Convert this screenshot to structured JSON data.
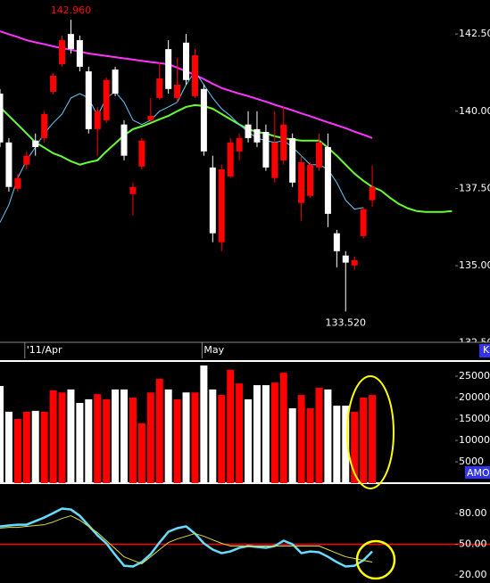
{
  "chart_data": [
    {
      "type": "candlestick",
      "categories": [
        null,
        null,
        null,
        "'11/Apr",
        null,
        null,
        null,
        null,
        null,
        null,
        null,
        null,
        null,
        null,
        null,
        null,
        null,
        null,
        null,
        null,
        null,
        null,
        null,
        "May",
        null,
        null,
        null,
        null,
        null,
        null,
        null,
        null,
        null,
        null,
        null,
        null,
        null,
        null,
        null,
        null,
        null,
        null,
        null,
        null,
        null,
        null,
        null,
        null,
        null,
        null,
        null,
        null
      ],
      "open": [
        138.99,
        137.55,
        137.84,
        138.56,
        138.84,
        139.91,
        141.15,
        142.3,
        142.01,
        141.44,
        139.42,
        140.0,
        141.01,
        140.57,
        138.56,
        137.55,
        139.05,
        139.85,
        141.06,
        140.72,
        140.86,
        141.01,
        141.81,
        138.7,
        136.05,
        138.12,
        138.99,
        139.13,
        139.13,
        138.99,
        138.18,
        138.99,
        139.57,
        137.69,
        138.35,
        138.27,
        138.99,
        136.68,
        135.47,
        135.1,
        135.18,
        136.83,
        137.55,
        null,
        null,
        null,
        null,
        null,
        null,
        null,
        null,
        null
      ],
      "high": [
        140.72,
        139.13,
        137.98,
        138.7,
        139.28,
        140.0,
        141.24,
        142.45,
        142.96,
        142.45,
        141.44,
        140.14,
        141.09,
        141.44,
        139.71,
        137.69,
        139.13,
        140.43,
        141.58,
        142.3,
        141.73,
        142.5,
        142.01,
        140.86,
        138.56,
        138.27,
        139.13,
        139.28,
        140.0,
        140.0,
        139.57,
        140.0,
        140.14,
        139.28,
        138.56,
        138.35,
        139.28,
        139.28,
        136.16,
        135.47,
        135.3,
        136.91,
        138.24,
        null,
        null,
        null,
        null,
        null,
        null,
        null,
        null,
        null
      ],
      "low": [
        138.84,
        137.4,
        137.4,
        138.12,
        138.56,
        138.99,
        140.55,
        141.44,
        141.87,
        141.29,
        139.28,
        138.56,
        139.62,
        140.49,
        138.41,
        136.63,
        138.12,
        139.65,
        140.37,
        140.57,
        140.29,
        140.86,
        140.43,
        138.56,
        135.76,
        135.47,
        137.84,
        138.41,
        138.99,
        138.84,
        138.07,
        137.69,
        138.27,
        137.55,
        136.45,
        137.2,
        138.07,
        136.25,
        134.95,
        133.52,
        134.87,
        135.88,
        136.91,
        null,
        null,
        null,
        null,
        null,
        null,
        null,
        null,
        null
      ],
      "close": [
        140.57,
        138.99,
        137.49,
        138.27,
        139.05,
        139.13,
        140.63,
        141.52,
        142.5,
        142.3,
        141.29,
        139.42,
        139.71,
        141.35,
        139.57,
        137.32,
        138.21,
        139.71,
        140.43,
        142.01,
        140.43,
        142.22,
        140.49,
        140.72,
        138.18,
        135.76,
        137.89,
        138.7,
        139.57,
        139.42,
        139.33,
        137.84,
        138.41,
        139.13,
        137.03,
        137.26,
        138.18,
        138.84,
        136.05,
        135.33,
        135.01,
        135.96,
        137.12,
        null,
        null,
        null,
        null,
        null,
        null,
        null,
        null,
        null
      ],
      "up_color": "#ffffff",
      "down_color": "#ff0000",
      "series": [
        {
          "color": "#ff33ff",
          "line_width": 2,
          "values": [
            142.59,
            142.49,
            142.4,
            142.3,
            142.23,
            142.17,
            142.1,
            142.04,
            141.99,
            141.93,
            141.87,
            141.83,
            141.79,
            141.75,
            141.71,
            141.67,
            141.63,
            141.59,
            141.56,
            141.52,
            141.41,
            141.29,
            141.18,
            141.04,
            140.89,
            140.75,
            140.66,
            140.57,
            140.49,
            140.4,
            140.31,
            140.21,
            140.12,
            140.03,
            139.93,
            139.84,
            139.74,
            139.64,
            139.55,
            139.45,
            139.34,
            139.24,
            139.13,
            null,
            null,
            null,
            null,
            null,
            null,
            null,
            null,
            null
          ]
        },
        {
          "color": "#66ff33",
          "line_width": 2,
          "values": [
            140.14,
            139.85,
            139.57,
            139.28,
            138.99,
            138.82,
            138.64,
            138.53,
            138.38,
            138.27,
            138.35,
            138.41,
            138.7,
            138.96,
            139.22,
            139.42,
            139.51,
            139.62,
            139.74,
            139.85,
            140.0,
            140.14,
            140.2,
            140.17,
            140.08,
            139.91,
            139.74,
            139.57,
            139.42,
            139.33,
            139.28,
            139.19,
            139.13,
            139.08,
            139.05,
            139.05,
            139.05,
            138.82,
            138.56,
            138.27,
            137.98,
            137.75,
            137.55,
            137.43,
            137.2,
            137.0,
            136.86,
            136.77,
            136.74,
            136.74,
            136.74,
            136.77
          ]
        },
        {
          "color": "#66ccff",
          "line_width": 1,
          "values": [
            136.4,
            136.97,
            137.84,
            138.41,
            138.84,
            139.28,
            139.62,
            139.91,
            140.43,
            140.57,
            140.43,
            139.85,
            140.43,
            140.63,
            140.29,
            139.71,
            139.57,
            139.71,
            140.0,
            140.14,
            140.29,
            140.86,
            141.29,
            140.86,
            140.43,
            140.08,
            139.85,
            139.57,
            139.33,
            139.13,
            139.05,
            138.99,
            139.05,
            138.84,
            138.56,
            138.27,
            138.27,
            138.12,
            137.69,
            137.12,
            136.83,
            136.88,
            null,
            null,
            null,
            null,
            null,
            null,
            null,
            null,
            null,
            null
          ]
        }
      ],
      "annotations": [
        {
          "text": "142.960",
          "color": "#ff0000"
        },
        {
          "text": "133.520",
          "color": "#ffffff"
        }
      ],
      "axis_tag": "K",
      "ylim": [
        132.55,
        143.6
      ],
      "yticks": [
        {
          "value": 132.5,
          "label": "132.50"
        },
        {
          "value": 135,
          "label": "135.00"
        },
        {
          "value": 137.5,
          "label": "137.50"
        },
        {
          "value": 140,
          "label": "140.00"
        },
        {
          "value": 142.5,
          "label": "142.50"
        }
      ]
    },
    {
      "type": "bar",
      "values": [
        22700,
        16700,
        15000,
        16700,
        16900,
        16700,
        21700,
        21200,
        21900,
        18750,
        19600,
        20800,
        19600,
        21900,
        21900,
        20000,
        14000,
        21200,
        24400,
        21900,
        19600,
        21200,
        21200,
        27500,
        21900,
        20600,
        26500,
        23300,
        19600,
        22900,
        22900,
        23500,
        25800,
        17500,
        20600,
        17500,
        22300,
        21900,
        18100,
        18100,
        16700,
        20000,
        20600
      ],
      "axis_tag": "AMO",
      "ylim": [
        0,
        28540
      ],
      "yticks": [
        5000,
        10000,
        15000,
        20000,
        25000
      ]
    },
    {
      "type": "line",
      "series": [
        {
          "color": "#66ddff",
          "line_width": 2.5,
          "values": [
            67.4,
            68.3,
            69.1,
            69.1,
            72.6,
            76.1,
            80.4,
            84.8,
            83.9,
            77.8,
            68.3,
            58.7,
            50.9,
            39.6,
            29.1,
            28.3,
            32.6,
            40.4,
            51.7,
            62.2,
            65.7,
            67.4,
            60.4,
            50.9,
            44.8,
            41.3,
            43.0,
            46.5,
            48.3,
            47.4,
            46.5,
            48.3,
            53.5,
            50.0,
            41.3,
            43.0,
            42.2,
            37.8,
            32.6,
            28.3,
            29.1,
            34.3,
            43.0
          ]
        },
        {
          "color": "#dddd44",
          "line_width": 1,
          "values": [
            65.7,
            66.5,
            66.5,
            67.4,
            68.3,
            69.1,
            71.7,
            75.2,
            77.8,
            73.5,
            67.4,
            61.3,
            53.5,
            45.7,
            37.8,
            34.3,
            30.9,
            37.8,
            44.8,
            51.7,
            55.2,
            57.8,
            60.4,
            57.8,
            54.3,
            50.9,
            48.3,
            48.3,
            48.3,
            48.3,
            48.3,
            48.3,
            48.3,
            48.3,
            48.3,
            48.3,
            48.3,
            44.8,
            41.3,
            37.8,
            36.1,
            34.3,
            32.6
          ]
        }
      ],
      "reference_line": 50,
      "reference_color": "#ff0000",
      "ylim": [
        12.2,
        107
      ],
      "yticks": [
        {
          "value": 20,
          "label": "20.00"
        },
        {
          "value": 50,
          "label": "50.00"
        },
        {
          "value": 80,
          "label": "80.00"
        }
      ]
    }
  ]
}
